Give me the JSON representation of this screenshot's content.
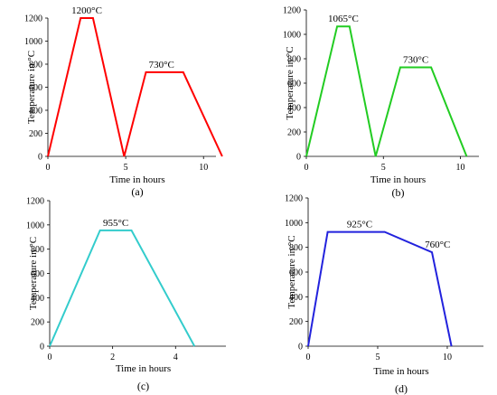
{
  "chart_data": [
    {
      "type": "line",
      "caption": "(a)",
      "xlabel": "Time in hours",
      "ylabel": "Temperature in °C",
      "xlim": [
        0,
        10.8
      ],
      "ylim": [
        0,
        1200
      ],
      "xticks": [
        0,
        5,
        10
      ],
      "yticks": [
        0,
        200,
        400,
        600,
        800,
        1000,
        1200
      ],
      "color": "#ff0000",
      "points": [
        [
          0,
          0
        ],
        [
          2.1,
          1200
        ],
        [
          2.9,
          1200
        ],
        [
          4.9,
          0
        ],
        [
          6.3,
          730
        ],
        [
          8.7,
          730
        ],
        [
          11.2,
          0
        ]
      ],
      "annotations": [
        {
          "text": "1200°C",
          "x": 2.5,
          "y": 1200
        },
        {
          "text": "730°C",
          "x": 7.3,
          "y": 730
        }
      ]
    },
    {
      "type": "line",
      "caption": "(b)",
      "xlabel": "Time in hours",
      "ylabel": "Temperature in °C",
      "xlim": [
        0,
        11.2
      ],
      "ylim": [
        0,
        1200
      ],
      "xticks": [
        0,
        5,
        10
      ],
      "yticks": [
        0,
        200,
        400,
        600,
        800,
        1000,
        1200
      ],
      "color": "#22cc22",
      "points": [
        [
          0,
          0
        ],
        [
          2,
          1065
        ],
        [
          2.8,
          1065
        ],
        [
          4.5,
          0
        ],
        [
          6.1,
          730
        ],
        [
          8.1,
          730
        ],
        [
          10.4,
          0
        ]
      ],
      "annotations": [
        {
          "text": "1065°C",
          "x": 2.4,
          "y": 1065
        },
        {
          "text": "730°C",
          "x": 7.1,
          "y": 730
        }
      ]
    },
    {
      "type": "line",
      "caption": "(c)",
      "xlabel": "Time in hours",
      "ylabel": "Temperature in °C",
      "xlim": [
        0,
        5.6
      ],
      "ylim": [
        0,
        1200
      ],
      "xticks": [
        0,
        2,
        4
      ],
      "yticks": [
        0,
        200,
        400,
        600,
        800,
        1000,
        1200
      ],
      "color": "#33cccc",
      "points": [
        [
          0,
          0
        ],
        [
          1.6,
          955
        ],
        [
          2.6,
          955
        ],
        [
          4.6,
          0
        ]
      ],
      "annotations": [
        {
          "text": "955°C",
          "x": 2.1,
          "y": 955
        }
      ]
    },
    {
      "type": "line",
      "caption": "(d)",
      "xlabel": "Time in hours",
      "ylabel": "Temperature in °C",
      "xlim": [
        0,
        12.6
      ],
      "ylim": [
        0,
        1200
      ],
      "xticks": [
        0,
        5,
        10
      ],
      "yticks": [
        0,
        200,
        400,
        600,
        800,
        1000,
        1200
      ],
      "color": "#2222dd",
      "points": [
        [
          0,
          0
        ],
        [
          1.4,
          925
        ],
        [
          5.5,
          925
        ],
        [
          8.9,
          760
        ],
        [
          10.3,
          0
        ]
      ],
      "annotations": [
        {
          "text": "925°C",
          "x": 3.7,
          "y": 925
        },
        {
          "text": "760°C",
          "x": 9.3,
          "y": 760
        }
      ]
    }
  ]
}
